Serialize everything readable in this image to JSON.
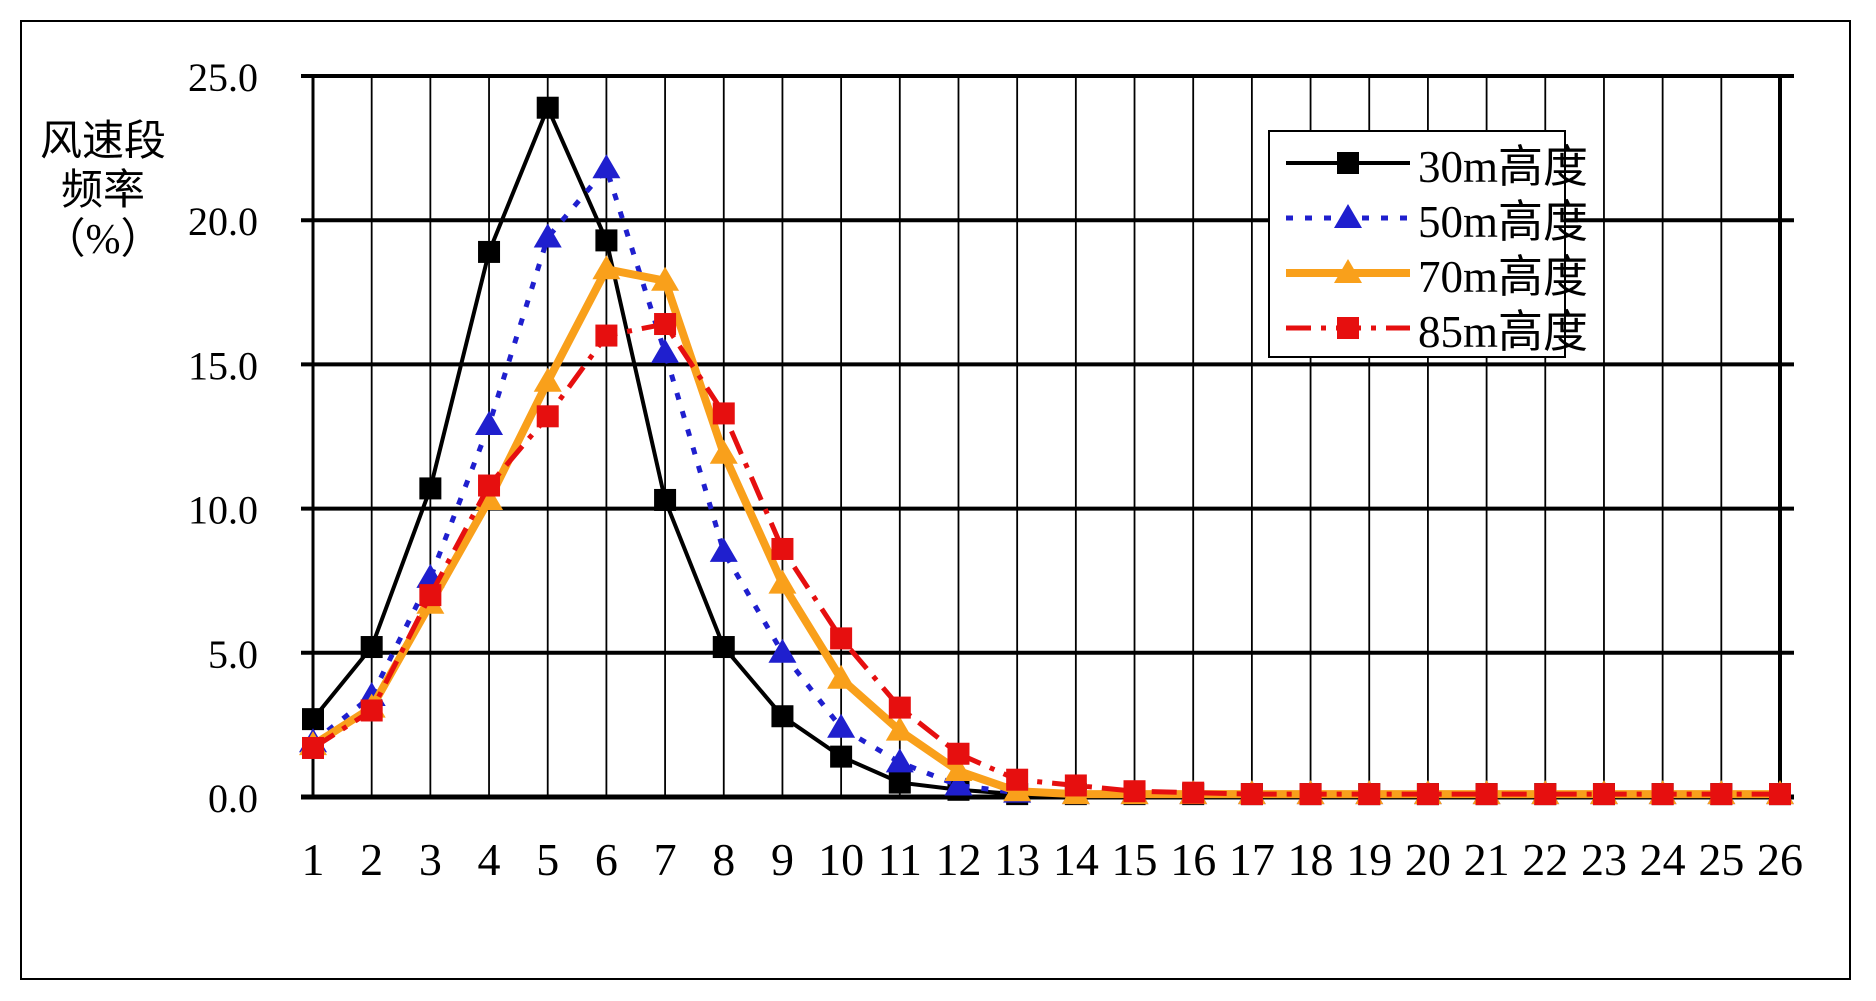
{
  "page": {
    "background": "#ffffff",
    "frame_color": "#000000"
  },
  "y_axis": {
    "title_lines": [
      "风速段",
      "频率",
      "（%）"
    ],
    "ticks": [
      "25.0",
      "20.0",
      "15.0",
      "10.0",
      "5.0",
      "0.0"
    ],
    "min": 0,
    "max": 25,
    "step": 5
  },
  "x_axis": {
    "ticks": [
      "1",
      "2",
      "3",
      "4",
      "5",
      "6",
      "7",
      "8",
      "9",
      "10",
      "11",
      "12",
      "13",
      "14",
      "15",
      "16",
      "17",
      "18",
      "19",
      "20",
      "21",
      "22",
      "23",
      "24",
      "25",
      "26"
    ]
  },
  "legend": {
    "entries": [
      "30m高度",
      "50m高度",
      "70m高度",
      "85m高度"
    ],
    "position": "upper-right-inside"
  },
  "chart_data": {
    "type": "line",
    "title": "",
    "xlabel": "",
    "ylabel": "风速段频率（%）",
    "x": [
      1,
      2,
      3,
      4,
      5,
      6,
      7,
      8,
      9,
      10,
      11,
      12,
      13,
      14,
      15,
      16,
      17,
      18,
      19,
      20,
      21,
      22,
      23,
      24,
      25,
      26
    ],
    "ylim": [
      0,
      25
    ],
    "ytick_step": 5,
    "grid": "both",
    "legend_position": "upper-right-inside",
    "series": [
      {
        "name": "30m高度",
        "color": "#000000",
        "line": "solid",
        "line_width": 4,
        "marker": "square",
        "values": [
          2.7,
          5.2,
          10.7,
          18.9,
          23.9,
          19.3,
          10.3,
          5.2,
          2.8,
          1.4,
          0.5,
          0.25,
          0.1,
          0.1,
          0.1,
          0.1,
          0.1,
          0.1,
          0.1,
          0.1,
          0.1,
          0.1,
          0.1,
          0.1,
          0.1,
          0.1
        ]
      },
      {
        "name": "50m高度",
        "color": "#1F1FCE",
        "line": "dotted",
        "line_width": 5,
        "marker": "triangle",
        "values": [
          1.9,
          3.5,
          7.6,
          12.9,
          19.4,
          21.8,
          15.4,
          8.5,
          5.0,
          2.4,
          1.2,
          0.4,
          0.15,
          0.1,
          0.1,
          0.1,
          0.1,
          0.1,
          0.1,
          0.1,
          0.1,
          0.1,
          0.1,
          0.1,
          0.1,
          0.1
        ]
      },
      {
        "name": "70m高度",
        "color": "#F9A01B",
        "line": "solid",
        "line_width": 8,
        "marker": "triangle",
        "values": [
          1.8,
          3.1,
          6.7,
          10.3,
          14.4,
          18.3,
          17.9,
          11.9,
          7.4,
          4.1,
          2.3,
          0.9,
          0.2,
          0.1,
          0.1,
          0.1,
          0.1,
          0.1,
          0.1,
          0.1,
          0.1,
          0.1,
          0.1,
          0.1,
          0.1,
          0.1
        ]
      },
      {
        "name": "85m高度",
        "color": "#E60F0F",
        "line": "dashdot",
        "line_width": 5,
        "marker": "square",
        "values": [
          1.7,
          3.0,
          7.0,
          10.8,
          13.2,
          16.0,
          16.4,
          13.3,
          8.6,
          5.5,
          3.1,
          1.5,
          0.6,
          0.4,
          0.2,
          0.15,
          0.1,
          0.1,
          0.1,
          0.1,
          0.1,
          0.1,
          0.1,
          0.1,
          0.1,
          0.1
        ]
      }
    ]
  }
}
